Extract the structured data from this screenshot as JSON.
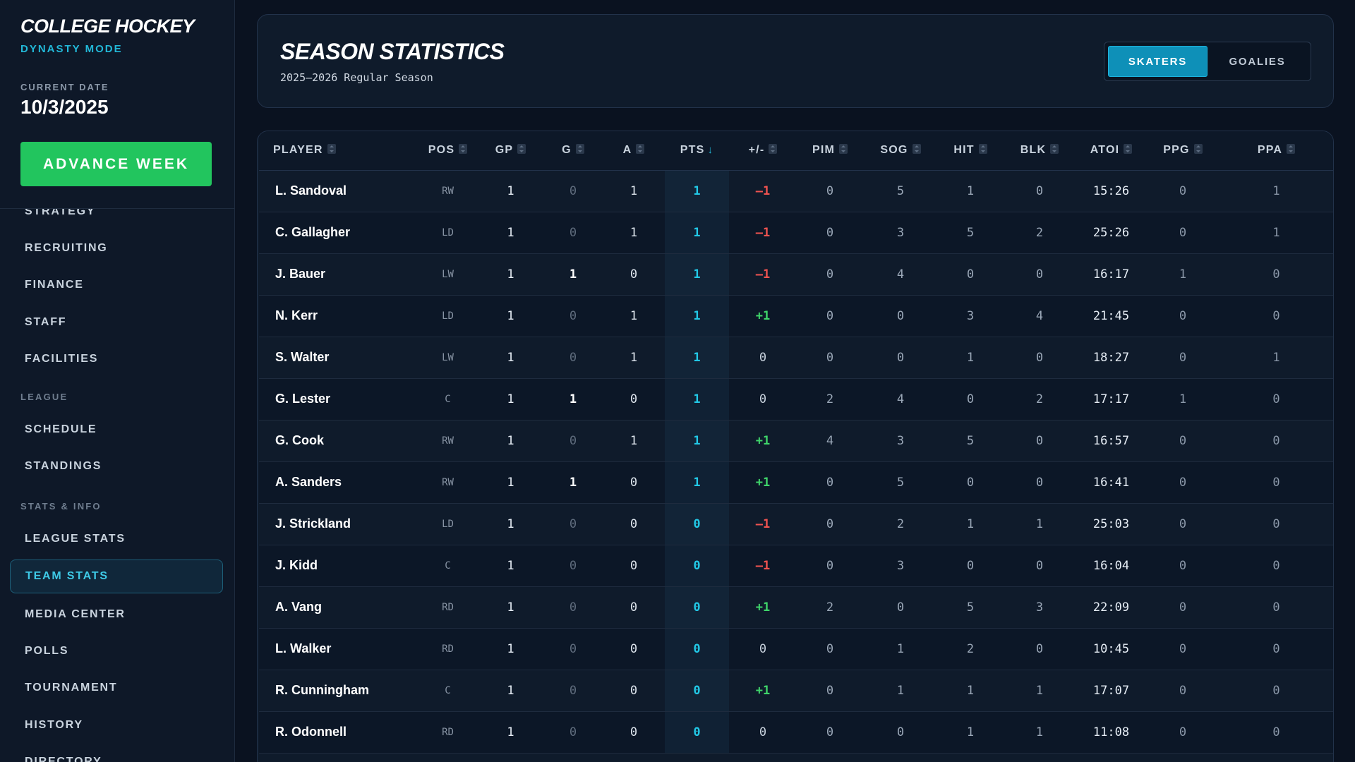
{
  "sidebar": {
    "brand_title": "COLLEGE HOCKEY",
    "brand_subtitle": "DYNASTY MODE",
    "date_label": "CURRENT DATE",
    "date_value": "10/3/2025",
    "advance_button": "ADVANCE WEEK",
    "nav_items": [
      {
        "label": "STRATEGY"
      },
      {
        "label": "RECRUITING"
      },
      {
        "label": "FINANCE"
      },
      {
        "label": "STAFF"
      },
      {
        "label": "FACILITIES"
      },
      {
        "label": "SCHEDULE"
      },
      {
        "label": "STANDINGS"
      },
      {
        "label": "LEAGUE STATS"
      },
      {
        "label": "TEAM STATS",
        "active": true
      },
      {
        "label": "MEDIA CENTER"
      },
      {
        "label": "POLLS"
      },
      {
        "label": "TOURNAMENT"
      },
      {
        "label": "HISTORY"
      },
      {
        "label": "DIRECTORY"
      }
    ],
    "sections": [
      "LEAGUE",
      "STATS & INFO"
    ]
  },
  "header": {
    "title": "SEASON STATISTICS",
    "subtitle": "2025–2026 Regular Season",
    "toggle": {
      "skaters": "SKATERS",
      "goalies": "GOALIES",
      "active": "skaters"
    }
  },
  "table": {
    "columns": [
      "PLAYER",
      "POS",
      "GP",
      "G",
      "A",
      "PTS",
      "+/-",
      "PIM",
      "SOG",
      "HIT",
      "BLK",
      "ATOI",
      "PPG",
      "PPA"
    ],
    "sorted_column": "PTS",
    "rows": [
      {
        "player": "L. Sandoval",
        "pos": "RW",
        "gp": "1",
        "g": "0",
        "a": "1",
        "pts": "1",
        "pm": "–1",
        "pim": "0",
        "sog": "5",
        "hit": "1",
        "blk": "0",
        "atoi": "15:26",
        "ppg": "0",
        "ppa": "1"
      },
      {
        "player": "C. Gallagher",
        "pos": "LD",
        "gp": "1",
        "g": "0",
        "a": "1",
        "pts": "1",
        "pm": "–1",
        "pim": "0",
        "sog": "3",
        "hit": "5",
        "blk": "2",
        "atoi": "25:26",
        "ppg": "0",
        "ppa": "1"
      },
      {
        "player": "J. Bauer",
        "pos": "LW",
        "gp": "1",
        "g": "1",
        "a": "0",
        "pts": "1",
        "pm": "–1",
        "pim": "0",
        "sog": "4",
        "hit": "0",
        "blk": "0",
        "atoi": "16:17",
        "ppg": "1",
        "ppa": "0"
      },
      {
        "player": "N. Kerr",
        "pos": "LD",
        "gp": "1",
        "g": "0",
        "a": "1",
        "pts": "1",
        "pm": "+1",
        "pim": "0",
        "sog": "0",
        "hit": "3",
        "blk": "4",
        "atoi": "21:45",
        "ppg": "0",
        "ppa": "0"
      },
      {
        "player": "S. Walter",
        "pos": "LW",
        "gp": "1",
        "g": "0",
        "a": "1",
        "pts": "1",
        "pm": "0",
        "pim": "0",
        "sog": "0",
        "hit": "1",
        "blk": "0",
        "atoi": "18:27",
        "ppg": "0",
        "ppa": "1"
      },
      {
        "player": "G. Lester",
        "pos": "C",
        "gp": "1",
        "g": "1",
        "a": "0",
        "pts": "1",
        "pm": "0",
        "pim": "2",
        "sog": "4",
        "hit": "0",
        "blk": "2",
        "atoi": "17:17",
        "ppg": "1",
        "ppa": "0"
      },
      {
        "player": "G. Cook",
        "pos": "RW",
        "gp": "1",
        "g": "0",
        "a": "1",
        "pts": "1",
        "pm": "+1",
        "pim": "4",
        "sog": "3",
        "hit": "5",
        "blk": "0",
        "atoi": "16:57",
        "ppg": "0",
        "ppa": "0"
      },
      {
        "player": "A. Sanders",
        "pos": "RW",
        "gp": "1",
        "g": "1",
        "a": "0",
        "pts": "1",
        "pm": "+1",
        "pim": "0",
        "sog": "5",
        "hit": "0",
        "blk": "0",
        "atoi": "16:41",
        "ppg": "0",
        "ppa": "0"
      },
      {
        "player": "J. Strickland",
        "pos": "LD",
        "gp": "1",
        "g": "0",
        "a": "0",
        "pts": "0",
        "pm": "–1",
        "pim": "0",
        "sog": "2",
        "hit": "1",
        "blk": "1",
        "atoi": "25:03",
        "ppg": "0",
        "ppa": "0"
      },
      {
        "player": "J. Kidd",
        "pos": "C",
        "gp": "1",
        "g": "0",
        "a": "0",
        "pts": "0",
        "pm": "–1",
        "pim": "0",
        "sog": "3",
        "hit": "0",
        "blk": "0",
        "atoi": "16:04",
        "ppg": "0",
        "ppa": "0"
      },
      {
        "player": "A. Vang",
        "pos": "RD",
        "gp": "1",
        "g": "0",
        "a": "0",
        "pts": "0",
        "pm": "+1",
        "pim": "2",
        "sog": "0",
        "hit": "5",
        "blk": "3",
        "atoi": "22:09",
        "ppg": "0",
        "ppa": "0"
      },
      {
        "player": "L. Walker",
        "pos": "RD",
        "gp": "1",
        "g": "0",
        "a": "0",
        "pts": "0",
        "pm": "0",
        "pim": "0",
        "sog": "1",
        "hit": "2",
        "blk": "0",
        "atoi": "10:45",
        "ppg": "0",
        "ppa": "0"
      },
      {
        "player": "R. Cunningham",
        "pos": "C",
        "gp": "1",
        "g": "0",
        "a": "0",
        "pts": "0",
        "pm": "+1",
        "pim": "0",
        "sog": "1",
        "hit": "1",
        "blk": "1",
        "atoi": "17:07",
        "ppg": "0",
        "ppa": "0"
      },
      {
        "player": "R. Odonnell",
        "pos": "RD",
        "gp": "1",
        "g": "0",
        "a": "0",
        "pts": "0",
        "pm": "0",
        "pim": "0",
        "sog": "0",
        "hit": "1",
        "blk": "1",
        "atoi": "11:08",
        "ppg": "0",
        "ppa": "0"
      }
    ]
  },
  "colors": {
    "accent": "#22b8d8",
    "advance_button": "#22c55e",
    "plus_minus_negative": "#ef5350",
    "plus_minus_positive": "#3fd46a"
  }
}
